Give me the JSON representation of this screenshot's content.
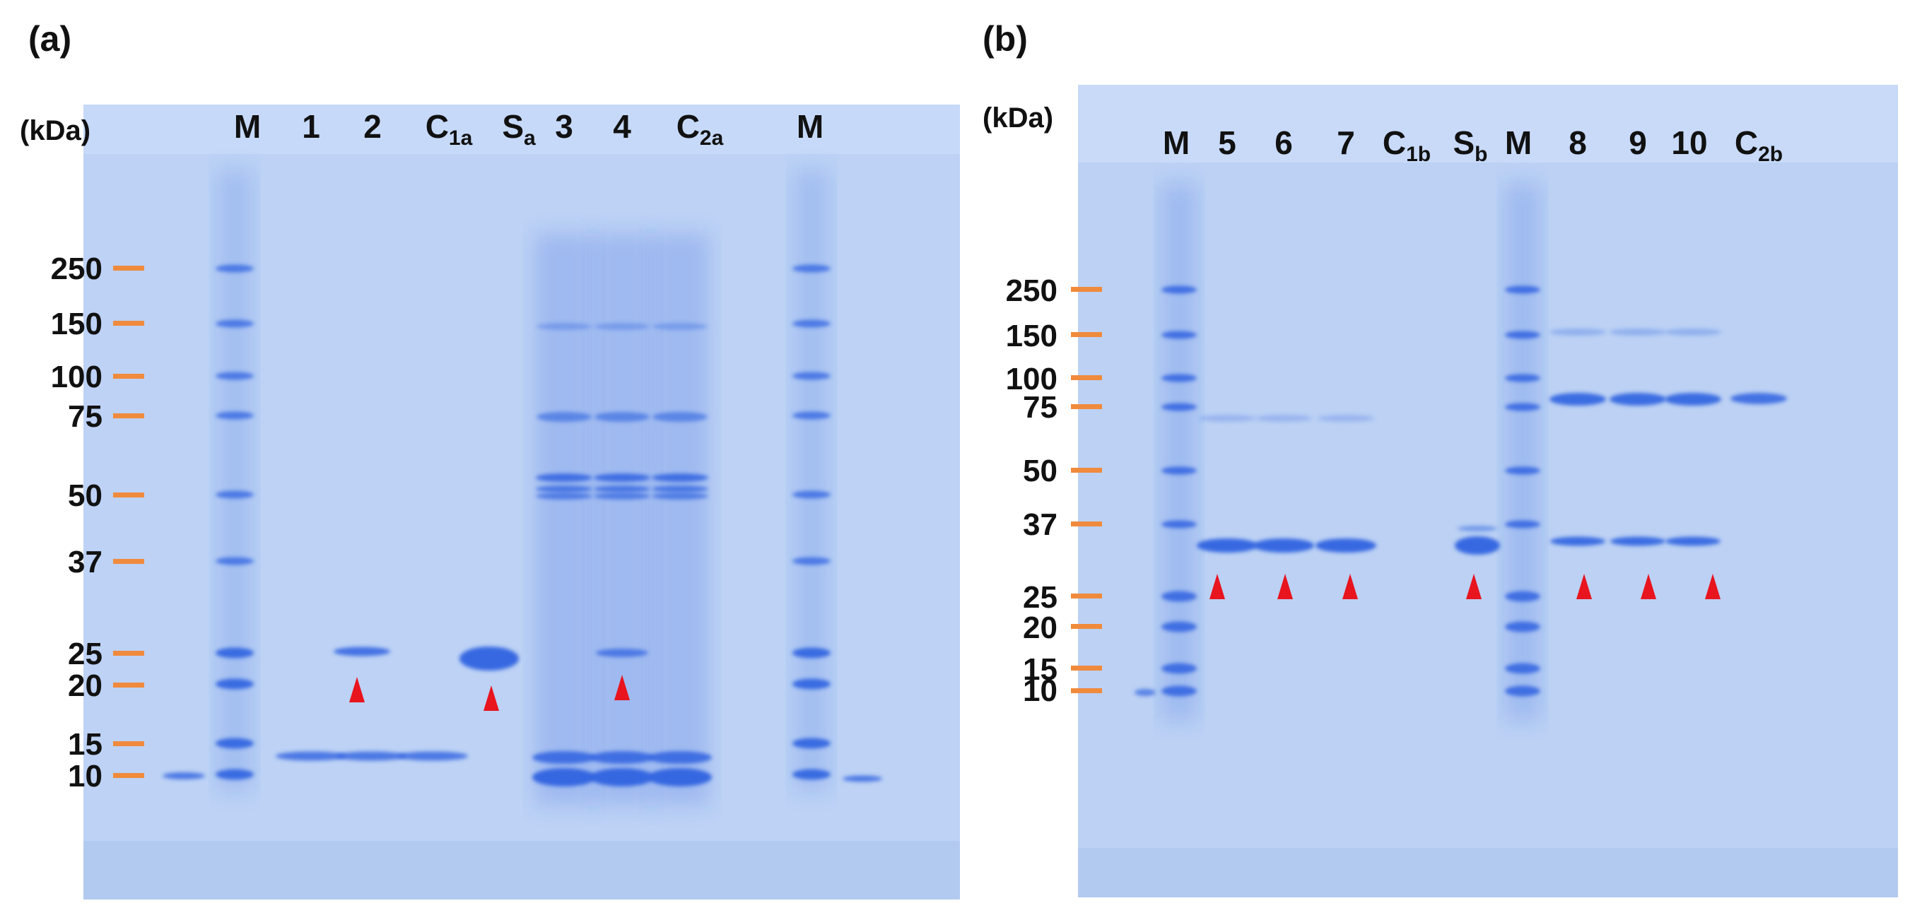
{
  "figure": {
    "gel_color": "#bcd1f4",
    "band_color": "#2e62e0",
    "tick_color": "#f08a3c",
    "arrow_color": "#e8141e"
  },
  "panels": [
    {
      "id": "a",
      "label": "(a)",
      "unit_label": "(kDa)",
      "lanes": [
        {
          "main": "M"
        },
        {
          "main": "1"
        },
        {
          "main": "2"
        },
        {
          "main": "C",
          "sub": "1a"
        },
        {
          "main": "S",
          "sub": "a"
        },
        {
          "main": "3"
        },
        {
          "main": "4"
        },
        {
          "main": "C",
          "sub": "2a"
        },
        {
          "main": "M"
        }
      ],
      "markers": [
        "250",
        "150",
        "100",
        "75",
        "50",
        "37",
        "25",
        "20",
        "15",
        "10"
      ],
      "arrow_lanes": [
        "2",
        "Sa",
        "4"
      ]
    },
    {
      "id": "b",
      "label": "(b)",
      "unit_label": "(kDa)",
      "lanes": [
        {
          "main": "M"
        },
        {
          "main": "5"
        },
        {
          "main": "6"
        },
        {
          "main": "7"
        },
        {
          "main": "C",
          "sub": "1b"
        },
        {
          "main": "S",
          "sub": "b"
        },
        {
          "main": "M"
        },
        {
          "main": "8"
        },
        {
          "main": "9"
        },
        {
          "main": "10"
        },
        {
          "main": "C",
          "sub": "2b"
        }
      ],
      "markers": [
        "250",
        "150",
        "100",
        "75",
        "50",
        "37",
        "25",
        "20",
        "15",
        "10"
      ],
      "arrow_lanes": [
        "5",
        "6",
        "7",
        "Sb",
        "8",
        "9",
        "10"
      ]
    }
  ]
}
